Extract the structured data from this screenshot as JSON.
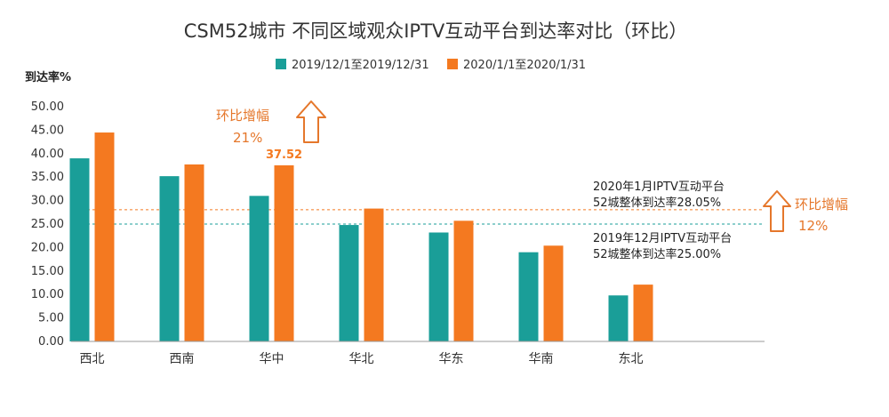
{
  "chart_data": {
    "type": "bar",
    "title": "CSM52城市  不同区域观众IPTV互动平台到达率对比（环比）",
    "ylabel": "到达率%",
    "ylim": [
      0,
      50
    ],
    "yticks": [
      "0.00",
      "5.00",
      "10.00",
      "15.00",
      "20.00",
      "25.00",
      "30.00",
      "35.00",
      "40.00",
      "45.00",
      "50.00"
    ],
    "grid": false,
    "legend_position": "top",
    "categories": [
      "西北",
      "西南",
      "华中",
      "华北",
      "华东",
      "华南",
      "东北"
    ],
    "series": [
      {
        "name": "2019/12/1至2019/12/31",
        "color": "#1a9e98",
        "values": [
          39.0,
          35.2,
          31.0,
          24.8,
          23.2,
          19.0,
          9.8
        ]
      },
      {
        "name": "2020/1/1至2020/1/31",
        "color": "#f47920",
        "values": [
          44.5,
          37.7,
          37.52,
          28.3,
          25.7,
          20.4,
          12.1
        ]
      }
    ],
    "data_labels": [
      {
        "series": 1,
        "category": "华中",
        "text": "37.52"
      }
    ],
    "reference_lines": [
      {
        "value": 28.05,
        "color": "#f47920",
        "style": "dashed",
        "label_line1": "2020年1月IPTV互动平台",
        "label_line2": "52城整体到达率28.05%"
      },
      {
        "value": 25.0,
        "color": "#1a9e98",
        "style": "dashed",
        "label_line1": "2019年12月IPTV互动平台",
        "label_line2": "52城整体到达率25.00%"
      }
    ],
    "annotations": [
      {
        "text_line1": "环比增幅",
        "text_line2": "21%",
        "color": "#e5772b",
        "arrow": "up-arrow-icon"
      },
      {
        "text_line1": "环比增幅",
        "text_line2": "12%",
        "color": "#e5772b",
        "arrow": "up-arrow-icon"
      }
    ],
    "axis_color": "#999999"
  }
}
